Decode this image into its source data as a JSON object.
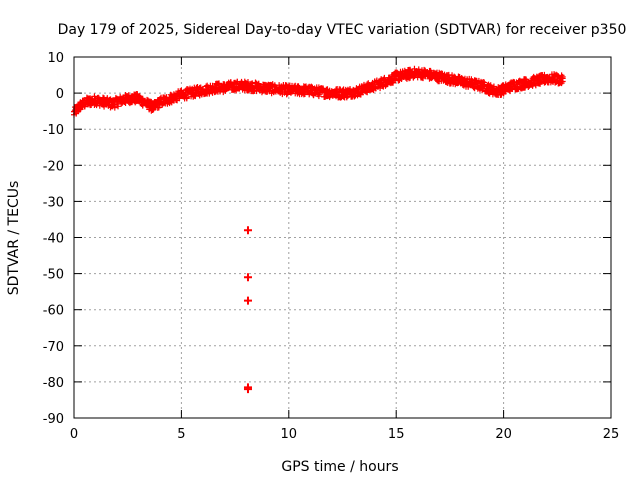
{
  "chart_data": {
    "type": "scatter",
    "title": "Day 179 of 2025, Sidereal Day-to-day VTEC variation (SDTVAR) for receiver p350",
    "xlabel": "GPS time / hours",
    "ylabel": "SDTVAR / TECUs",
    "xlim": [
      0,
      25
    ],
    "ylim": [
      -90,
      10
    ],
    "xticks": [
      0,
      5,
      10,
      15,
      20,
      25
    ],
    "yticks": [
      10,
      0,
      -10,
      -20,
      -30,
      -40,
      -50,
      -60,
      -70,
      -80,
      -90
    ],
    "grid": true,
    "marker": "plus",
    "series": [
      {
        "name": "SDTVAR",
        "color": "#ff0000",
        "trend": [
          [
            0.0,
            -5.5
          ],
          [
            0.3,
            -3.5
          ],
          [
            0.6,
            -2.5
          ],
          [
            1.0,
            -2.0
          ],
          [
            1.4,
            -2.5
          ],
          [
            1.8,
            -3.0
          ],
          [
            2.2,
            -2.0
          ],
          [
            2.6,
            -1.5
          ],
          [
            3.0,
            -1.5
          ],
          [
            3.4,
            -3.0
          ],
          [
            3.7,
            -4.0
          ],
          [
            4.0,
            -2.5
          ],
          [
            4.3,
            -2.0
          ],
          [
            4.7,
            -1.0
          ],
          [
            5.0,
            -0.5
          ],
          [
            5.4,
            0.0
          ],
          [
            5.8,
            0.5
          ],
          [
            6.2,
            1.0
          ],
          [
            6.6,
            1.5
          ],
          [
            7.0,
            1.5
          ],
          [
            7.5,
            2.0
          ],
          [
            8.0,
            2.0
          ],
          [
            8.3,
            1.8
          ],
          [
            8.7,
            1.5
          ],
          [
            9.2,
            1.2
          ],
          [
            9.7,
            1.0
          ],
          [
            10.2,
            0.8
          ],
          [
            10.7,
            0.8
          ],
          [
            11.2,
            0.5
          ],
          [
            11.7,
            0.2
          ],
          [
            12.2,
            0.0
          ],
          [
            12.7,
            0.0
          ],
          [
            13.2,
            0.5
          ],
          [
            13.7,
            1.5
          ],
          [
            14.2,
            2.5
          ],
          [
            14.6,
            3.5
          ],
          [
            15.0,
            4.5
          ],
          [
            15.4,
            5.0
          ],
          [
            15.8,
            5.5
          ],
          [
            16.2,
            5.5
          ],
          [
            16.6,
            5.0
          ],
          [
            17.0,
            4.5
          ],
          [
            17.4,
            4.0
          ],
          [
            17.8,
            3.5
          ],
          [
            18.2,
            3.0
          ],
          [
            18.6,
            2.5
          ],
          [
            19.0,
            2.0
          ],
          [
            19.4,
            1.0
          ],
          [
            19.7,
            0.5
          ],
          [
            20.0,
            1.0
          ],
          [
            20.4,
            2.0
          ],
          [
            20.8,
            2.5
          ],
          [
            21.2,
            3.0
          ],
          [
            21.6,
            3.5
          ],
          [
            22.0,
            4.0
          ],
          [
            22.4,
            4.0
          ],
          [
            22.8,
            3.5
          ]
        ],
        "spread": 1.3,
        "outliers": [
          [
            8.1,
            -38
          ],
          [
            8.1,
            -51
          ],
          [
            8.1,
            -57.5
          ],
          [
            8.1,
            -81.5
          ],
          [
            8.1,
            -82
          ]
        ]
      }
    ]
  }
}
